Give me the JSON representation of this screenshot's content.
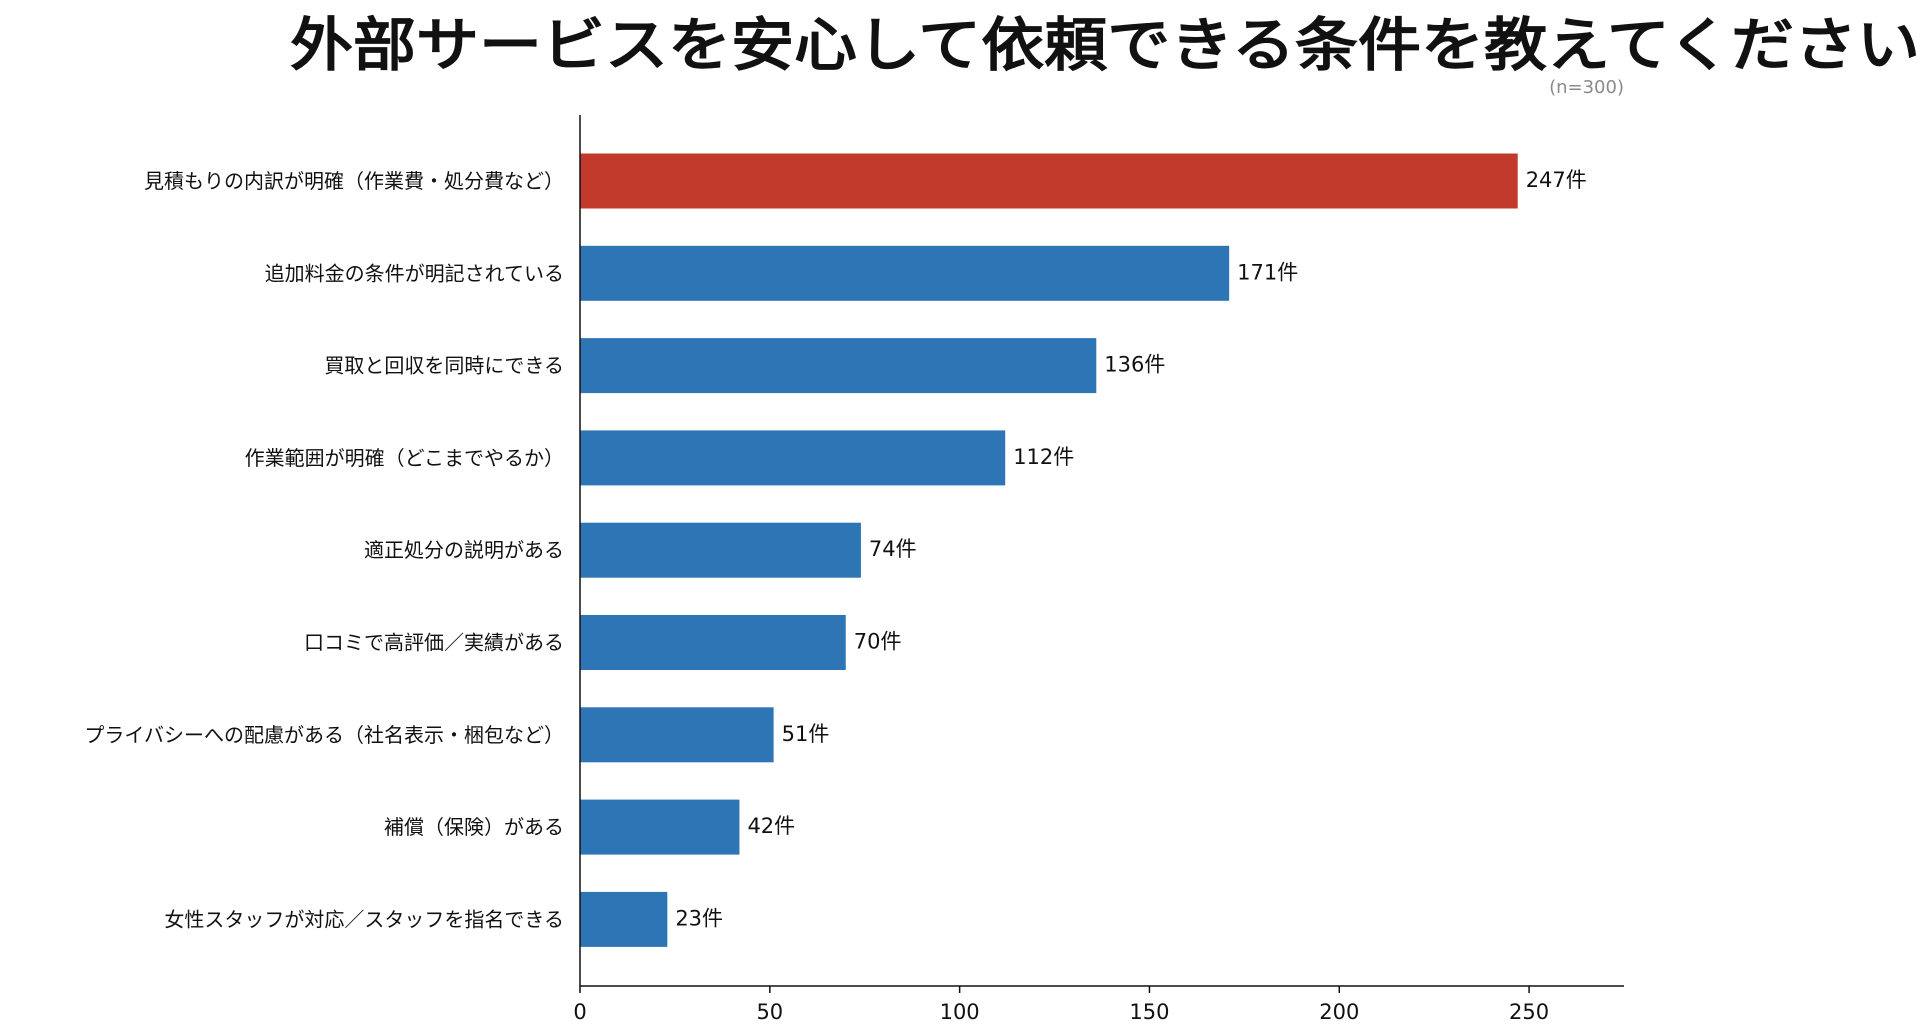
{
  "chart_data": {
    "type": "bar",
    "orientation": "horizontal",
    "title": "外部サービスを安心して依頼できる条件を教えてください",
    "note": "(n=300)",
    "categories": [
      "見積もりの内訳が明確（作業費・処分費など）",
      "追加料金の条件が明記されている",
      "買取と回収を同時にできる",
      "作業範囲が明確（どこまでやるか）",
      "適正処分の説明がある",
      "口コミで高評価／実績がある",
      "プライバシーへの配慮がある（社名表示・梱包など）",
      "補償（保険）がある",
      "女性スタッフが対応／スタッフを指名できる"
    ],
    "values": [
      247,
      171,
      136,
      112,
      74,
      70,
      51,
      42,
      23
    ],
    "value_labels": [
      "247件",
      "171件",
      "136件",
      "112件",
      "74件",
      "70件",
      "51件",
      "42件",
      "23件"
    ],
    "highlight_index": 0,
    "colors": {
      "highlight": "#c0392b",
      "bar": "#2e75b6",
      "axis": "#111111",
      "text": "#111111",
      "note": "#8a8a8a"
    },
    "xlim": [
      0,
      275
    ],
    "xticks": [
      0,
      50,
      100,
      150,
      200,
      250
    ],
    "xlabel": "",
    "ylabel": "",
    "grid": false
  }
}
